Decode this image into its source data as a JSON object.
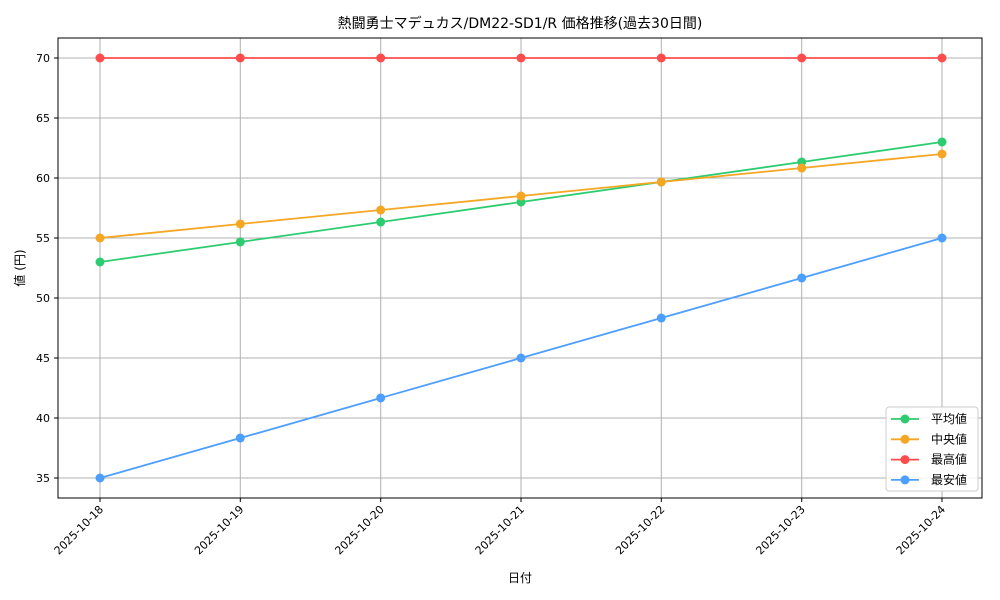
{
  "chart_data": {
    "type": "line",
    "title": "熱闘勇士マデュカス/DM22-SD1/R 価格推移(過去30日間)",
    "xlabel": "日付",
    "ylabel": "値 (円)",
    "categories": [
      "2025-10-18",
      "2025-10-19",
      "2025-10-20",
      "2025-10-21",
      "2025-10-22",
      "2025-10-23",
      "2025-10-24"
    ],
    "yticks": [
      35,
      40,
      45,
      50,
      55,
      60,
      65,
      70
    ],
    "ylim": [
      33.25,
      71.75
    ],
    "grid": true,
    "legend_position": "lower right",
    "series": [
      {
        "name": "平均値",
        "color": "#2ecc71",
        "values": [
          53,
          54.67,
          56.33,
          58,
          59.67,
          61.33,
          63
        ]
      },
      {
        "name": "中央値",
        "color": "#f5a623",
        "values": [
          55,
          56.17,
          57.33,
          58.5,
          59.67,
          60.83,
          62
        ]
      },
      {
        "name": "最高値",
        "color": "#ff4d4d",
        "values": [
          70,
          70,
          70,
          70,
          70,
          70,
          70
        ]
      },
      {
        "name": "最安値",
        "color": "#4d9fff",
        "values": [
          35,
          38.33,
          41.67,
          45,
          48.33,
          51.67,
          55
        ]
      }
    ]
  }
}
